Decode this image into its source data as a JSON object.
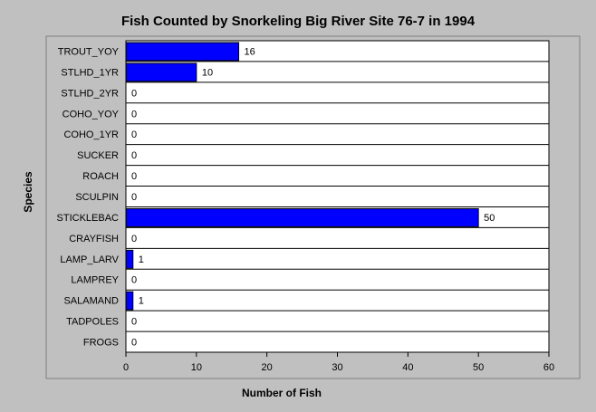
{
  "chart_data": {
    "type": "bar",
    "orientation": "horizontal",
    "title": "Fish Counted by Snorkeling Big River Site 76-7 in 1994",
    "xlabel": "Number of Fish",
    "ylabel": "Species",
    "categories": [
      "TROUT_YOY",
      "STLHD_1YR",
      "STLHD_2YR",
      "COHO_YOY",
      "COHO_1YR",
      "SUCKER",
      "ROACH",
      "SCULPIN",
      "STICKLEBAC",
      "CRAYFISH",
      "LAMP_LARV",
      "LAMPREY",
      "SALAMAND",
      "TADPOLES",
      "FROGS"
    ],
    "values": [
      16,
      10,
      0,
      0,
      0,
      0,
      0,
      0,
      50,
      0,
      1,
      0,
      1,
      0,
      0
    ],
    "xlim": [
      0,
      60
    ],
    "xticks": [
      0,
      10,
      20,
      30,
      40,
      50,
      60
    ],
    "bar_color": "#0000ff",
    "background_color": "#c0c0c0",
    "plot_background_color": "#ffffff",
    "legend": "none"
  }
}
